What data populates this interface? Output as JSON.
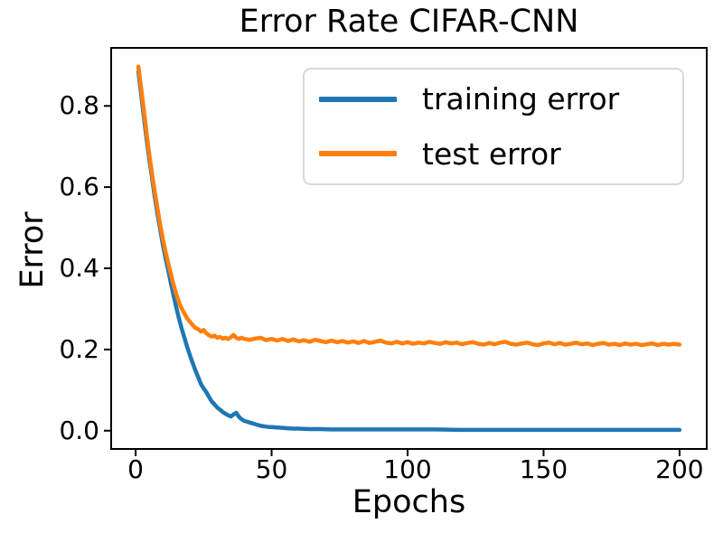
{
  "chart_data": {
    "type": "line",
    "title": "Error Rate CIFAR-CNN",
    "xlabel": "Epochs",
    "ylabel": "Error",
    "xlim": [
      -9,
      210
    ],
    "ylim": [
      -0.045,
      0.943
    ],
    "grid": false,
    "xticks": {
      "values": [
        0,
        50,
        100,
        150,
        200
      ],
      "labels": [
        "0",
        "50",
        "100",
        "150",
        "200"
      ]
    },
    "yticks": {
      "values": [
        0.0,
        0.2,
        0.4,
        0.6,
        0.8
      ],
      "labels": [
        "0.0",
        "0.2",
        "0.4",
        "0.6",
        "0.8"
      ]
    },
    "legend": {
      "position": "upper right",
      "entries": [
        "training error",
        "test error"
      ]
    },
    "series": [
      {
        "name": "training error",
        "color": "#1f77b4",
        "points": [
          [
            1,
            0.885
          ],
          [
            2,
            0.83
          ],
          [
            3,
            0.775
          ],
          [
            4,
            0.72
          ],
          [
            5,
            0.67
          ],
          [
            6,
            0.625
          ],
          [
            7,
            0.578
          ],
          [
            8,
            0.535
          ],
          [
            9,
            0.497
          ],
          [
            10,
            0.458
          ],
          [
            11,
            0.425
          ],
          [
            12,
            0.395
          ],
          [
            13,
            0.362
          ],
          [
            14,
            0.332
          ],
          [
            15,
            0.302
          ],
          [
            16,
            0.275
          ],
          [
            17,
            0.25
          ],
          [
            18,
            0.228
          ],
          [
            19,
            0.205
          ],
          [
            20,
            0.185
          ],
          [
            21,
            0.166
          ],
          [
            22,
            0.148
          ],
          [
            23,
            0.132
          ],
          [
            24,
            0.115
          ],
          [
            25,
            0.104
          ],
          [
            26,
            0.095
          ],
          [
            27,
            0.083
          ],
          [
            28,
            0.072
          ],
          [
            29,
            0.065
          ],
          [
            30,
            0.057
          ],
          [
            31,
            0.052
          ],
          [
            32,
            0.046
          ],
          [
            33,
            0.042
          ],
          [
            34,
            0.038
          ],
          [
            35,
            0.035
          ],
          [
            36,
            0.04
          ],
          [
            37,
            0.044
          ],
          [
            38,
            0.034
          ],
          [
            39,
            0.028
          ],
          [
            40,
            0.024
          ],
          [
            41,
            0.022
          ],
          [
            42,
            0.02
          ],
          [
            43,
            0.018
          ],
          [
            44,
            0.016
          ],
          [
            45,
            0.014
          ],
          [
            46,
            0.012
          ],
          [
            47,
            0.011
          ],
          [
            48,
            0.01
          ],
          [
            49,
            0.009
          ],
          [
            50,
            0.009
          ],
          [
            52,
            0.008
          ],
          [
            54,
            0.007
          ],
          [
            56,
            0.006
          ],
          [
            58,
            0.005
          ],
          [
            60,
            0.005
          ],
          [
            64,
            0.004
          ],
          [
            68,
            0.004
          ],
          [
            72,
            0.003
          ],
          [
            76,
            0.003
          ],
          [
            80,
            0.003
          ],
          [
            90,
            0.003
          ],
          [
            100,
            0.003
          ],
          [
            110,
            0.003
          ],
          [
            120,
            0.002
          ],
          [
            130,
            0.002
          ],
          [
            140,
            0.002
          ],
          [
            150,
            0.002
          ],
          [
            160,
            0.002
          ],
          [
            170,
            0.002
          ],
          [
            180,
            0.002
          ],
          [
            190,
            0.002
          ],
          [
            200,
            0.002
          ]
        ]
      },
      {
        "name": "test error",
        "color": "#ff7f0e",
        "points": [
          [
            1,
            0.897
          ],
          [
            2,
            0.845
          ],
          [
            3,
            0.79
          ],
          [
            4,
            0.735
          ],
          [
            5,
            0.682
          ],
          [
            6,
            0.635
          ],
          [
            7,
            0.59
          ],
          [
            8,
            0.548
          ],
          [
            9,
            0.508
          ],
          [
            10,
            0.472
          ],
          [
            11,
            0.44
          ],
          [
            12,
            0.412
          ],
          [
            13,
            0.385
          ],
          [
            14,
            0.358
          ],
          [
            15,
            0.335
          ],
          [
            16,
            0.315
          ],
          [
            17,
            0.3
          ],
          [
            18,
            0.288
          ],
          [
            19,
            0.276
          ],
          [
            20,
            0.268
          ],
          [
            21,
            0.26
          ],
          [
            22,
            0.253
          ],
          [
            23,
            0.25
          ],
          [
            24,
            0.244
          ],
          [
            25,
            0.248
          ],
          [
            26,
            0.24
          ],
          [
            27,
            0.235
          ],
          [
            28,
            0.232
          ],
          [
            29,
            0.234
          ],
          [
            30,
            0.229
          ],
          [
            31,
            0.231
          ],
          [
            32,
            0.227
          ],
          [
            33,
            0.229
          ],
          [
            34,
            0.226
          ],
          [
            35,
            0.23
          ],
          [
            36,
            0.236
          ],
          [
            37,
            0.229
          ],
          [
            38,
            0.226
          ],
          [
            39,
            0.229
          ],
          [
            40,
            0.226
          ],
          [
            42,
            0.224
          ],
          [
            44,
            0.227
          ],
          [
            46,
            0.229
          ],
          [
            48,
            0.223
          ],
          [
            50,
            0.226
          ],
          [
            52,
            0.222
          ],
          [
            54,
            0.226
          ],
          [
            56,
            0.221
          ],
          [
            58,
            0.225
          ],
          [
            60,
            0.22
          ],
          [
            62,
            0.223
          ],
          [
            64,
            0.219
          ],
          [
            66,
            0.224
          ],
          [
            68,
            0.221
          ],
          [
            70,
            0.218
          ],
          [
            72,
            0.222
          ],
          [
            74,
            0.218
          ],
          [
            76,
            0.221
          ],
          [
            78,
            0.217
          ],
          [
            80,
            0.22
          ],
          [
            82,
            0.216
          ],
          [
            84,
            0.221
          ],
          [
            86,
            0.216
          ],
          [
            88,
            0.219
          ],
          [
            90,
            0.222
          ],
          [
            92,
            0.217
          ],
          [
            94,
            0.215
          ],
          [
            96,
            0.219
          ],
          [
            98,
            0.215
          ],
          [
            100,
            0.218
          ],
          [
            102,
            0.214
          ],
          [
            104,
            0.217
          ],
          [
            106,
            0.215
          ],
          [
            108,
            0.219
          ],
          [
            110,
            0.216
          ],
          [
            112,
            0.214
          ],
          [
            114,
            0.218
          ],
          [
            116,
            0.215
          ],
          [
            118,
            0.217
          ],
          [
            120,
            0.213
          ],
          [
            122,
            0.216
          ],
          [
            124,
            0.218
          ],
          [
            126,
            0.214
          ],
          [
            128,
            0.212
          ],
          [
            130,
            0.216
          ],
          [
            132,
            0.213
          ],
          [
            134,
            0.217
          ],
          [
            136,
            0.219
          ],
          [
            138,
            0.214
          ],
          [
            140,
            0.212
          ],
          [
            142,
            0.215
          ],
          [
            144,
            0.217
          ],
          [
            146,
            0.213
          ],
          [
            148,
            0.211
          ],
          [
            150,
            0.215
          ],
          [
            152,
            0.217
          ],
          [
            154,
            0.213
          ],
          [
            156,
            0.216
          ],
          [
            158,
            0.212
          ],
          [
            160,
            0.214
          ],
          [
            162,
            0.217
          ],
          [
            164,
            0.213
          ],
          [
            166,
            0.215
          ],
          [
            168,
            0.211
          ],
          [
            170,
            0.214
          ],
          [
            172,
            0.216
          ],
          [
            174,
            0.212
          ],
          [
            176,
            0.214
          ],
          [
            178,
            0.211
          ],
          [
            180,
            0.215
          ],
          [
            182,
            0.212
          ],
          [
            184,
            0.214
          ],
          [
            186,
            0.211
          ],
          [
            188,
            0.213
          ],
          [
            190,
            0.215
          ],
          [
            192,
            0.211
          ],
          [
            194,
            0.214
          ],
          [
            196,
            0.212
          ],
          [
            198,
            0.214
          ],
          [
            200,
            0.212
          ]
        ]
      }
    ]
  }
}
